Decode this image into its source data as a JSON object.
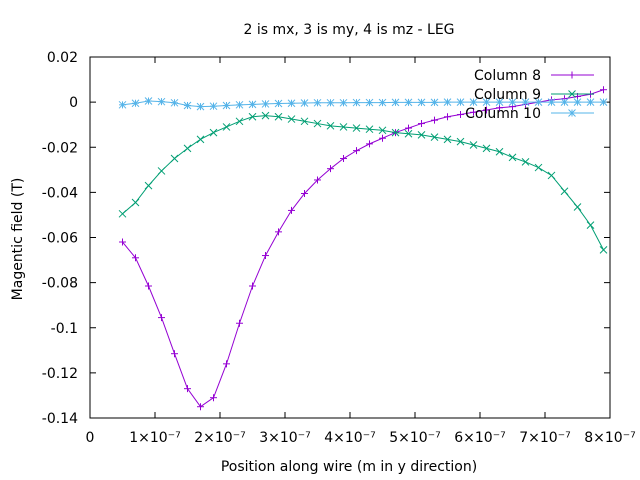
{
  "chart_data": {
    "type": "line",
    "title": "2 is mx, 3 is my, 4 is mz - LEG",
    "xlabel": "Position along wire (m in y direction)",
    "ylabel": "Magentic field (T)",
    "xlim": [
      0,
      8e-07
    ],
    "ylim": [
      -0.14,
      0.02
    ],
    "grid": false,
    "legend_position": "top-right",
    "x_ticks": [
      {
        "value": 0,
        "label": "0"
      },
      {
        "value": 1e-07,
        "label": "1×10⁻⁷"
      },
      {
        "value": 2e-07,
        "label": "2×10⁻⁷"
      },
      {
        "value": 3e-07,
        "label": "3×10⁻⁷"
      },
      {
        "value": 4e-07,
        "label": "4×10⁻⁷"
      },
      {
        "value": 5e-07,
        "label": "5×10⁻⁷"
      },
      {
        "value": 6e-07,
        "label": "6×10⁻⁷"
      },
      {
        "value": 7e-07,
        "label": "7×10⁻⁷"
      },
      {
        "value": 8e-07,
        "label": "8×10⁻⁷"
      }
    ],
    "y_ticks": [
      {
        "value": 0.02,
        "label": "0.02"
      },
      {
        "value": 0,
        "label": "0"
      },
      {
        "value": -0.02,
        "label": "-0.02"
      },
      {
        "value": -0.04,
        "label": "-0.04"
      },
      {
        "value": -0.06,
        "label": "-0.06"
      },
      {
        "value": -0.08,
        "label": "-0.08"
      },
      {
        "value": -0.1,
        "label": "-0.1"
      },
      {
        "value": -0.12,
        "label": "-0.12"
      },
      {
        "value": -0.14,
        "label": "-0.14"
      }
    ],
    "series": [
      {
        "name": "Column 8",
        "color": "#9400d3",
        "marker": "plus",
        "x": [
          5e-08,
          7e-08,
          9e-08,
          1.1e-07,
          1.3e-07,
          1.5e-07,
          1.7e-07,
          1.9e-07,
          2.1e-07,
          2.3e-07,
          2.5e-07,
          2.7e-07,
          2.9e-07,
          3.1e-07,
          3.3e-07,
          3.5e-07,
          3.7e-07,
          3.9e-07,
          4.1e-07,
          4.3e-07,
          4.5e-07,
          4.7e-07,
          4.9e-07,
          5.1e-07,
          5.3e-07,
          5.5e-07,
          5.7e-07,
          5.9e-07,
          6.1e-07,
          6.3e-07,
          6.5e-07,
          6.7e-07,
          6.9e-07,
          7.1e-07,
          7.3e-07,
          7.5e-07,
          7.7e-07,
          7.9e-07
        ],
        "y": [
          -0.062,
          -0.069,
          -0.0815,
          -0.0955,
          -0.1115,
          -0.127,
          -0.135,
          -0.131,
          -0.116,
          -0.098,
          -0.0815,
          -0.068,
          -0.0575,
          -0.048,
          -0.0405,
          -0.0345,
          -0.0295,
          -0.025,
          -0.0215,
          -0.0185,
          -0.016,
          -0.0135,
          -0.0115,
          -0.0095,
          -0.008,
          -0.0065,
          -0.0055,
          -0.0045,
          -0.0035,
          -0.0025,
          -0.002,
          -0.001,
          0.0,
          0.001,
          0.0015,
          0.0025,
          0.0035,
          0.0055
        ]
      },
      {
        "name": "Column 9",
        "color": "#009e73",
        "marker": "x",
        "x": [
          5e-08,
          7e-08,
          9e-08,
          1.1e-07,
          1.3e-07,
          1.5e-07,
          1.7e-07,
          1.9e-07,
          2.1e-07,
          2.3e-07,
          2.5e-07,
          2.7e-07,
          2.9e-07,
          3.1e-07,
          3.3e-07,
          3.5e-07,
          3.7e-07,
          3.9e-07,
          4.1e-07,
          4.3e-07,
          4.5e-07,
          4.7e-07,
          4.9e-07,
          5.1e-07,
          5.3e-07,
          5.5e-07,
          5.7e-07,
          5.9e-07,
          6.1e-07,
          6.3e-07,
          6.5e-07,
          6.7e-07,
          6.9e-07,
          7.1e-07,
          7.3e-07,
          7.5e-07,
          7.7e-07,
          7.9e-07
        ],
        "y": [
          -0.0495,
          -0.0445,
          -0.037,
          -0.0305,
          -0.025,
          -0.0205,
          -0.0165,
          -0.0135,
          -0.011,
          -0.0085,
          -0.0065,
          -0.006,
          -0.0065,
          -0.0075,
          -0.0085,
          -0.0095,
          -0.0105,
          -0.011,
          -0.0115,
          -0.012,
          -0.0125,
          -0.0135,
          -0.014,
          -0.0145,
          -0.0155,
          -0.0165,
          -0.0175,
          -0.019,
          -0.0205,
          -0.022,
          -0.0245,
          -0.0265,
          -0.029,
          -0.0325,
          -0.0395,
          -0.0465,
          -0.0545,
          -0.0655
        ]
      },
      {
        "name": "Column 10",
        "color": "#56b4e9",
        "marker": "asterisk",
        "x": [
          5e-08,
          7e-08,
          9e-08,
          1.1e-07,
          1.3e-07,
          1.5e-07,
          1.7e-07,
          1.9e-07,
          2.1e-07,
          2.3e-07,
          2.5e-07,
          2.7e-07,
          2.9e-07,
          3.1e-07,
          3.3e-07,
          3.5e-07,
          3.7e-07,
          3.9e-07,
          4.1e-07,
          4.3e-07,
          4.5e-07,
          4.7e-07,
          4.9e-07,
          5.1e-07,
          5.3e-07,
          5.5e-07,
          5.7e-07,
          5.9e-07,
          6.1e-07,
          6.3e-07,
          6.5e-07,
          6.7e-07,
          6.9e-07,
          7.1e-07,
          7.3e-07,
          7.5e-07,
          7.7e-07,
          7.9e-07
        ],
        "y": [
          -0.0012,
          -0.0005,
          0.0005,
          0.0002,
          -0.0003,
          -0.0015,
          -0.002,
          -0.0018,
          -0.0015,
          -0.0012,
          -0.001,
          -0.0008,
          -0.0006,
          -0.0005,
          -0.0004,
          -0.0003,
          -0.0003,
          -0.0003,
          -0.0002,
          -0.0002,
          -0.0002,
          -0.0001,
          -0.0001,
          -0.0001,
          -0.0001,
          0.0,
          0.0,
          0.0,
          0.0,
          0.0,
          0.0,
          0.0,
          0.0,
          0.0,
          0.0,
          0.0,
          0.0,
          0.0
        ]
      }
    ]
  }
}
